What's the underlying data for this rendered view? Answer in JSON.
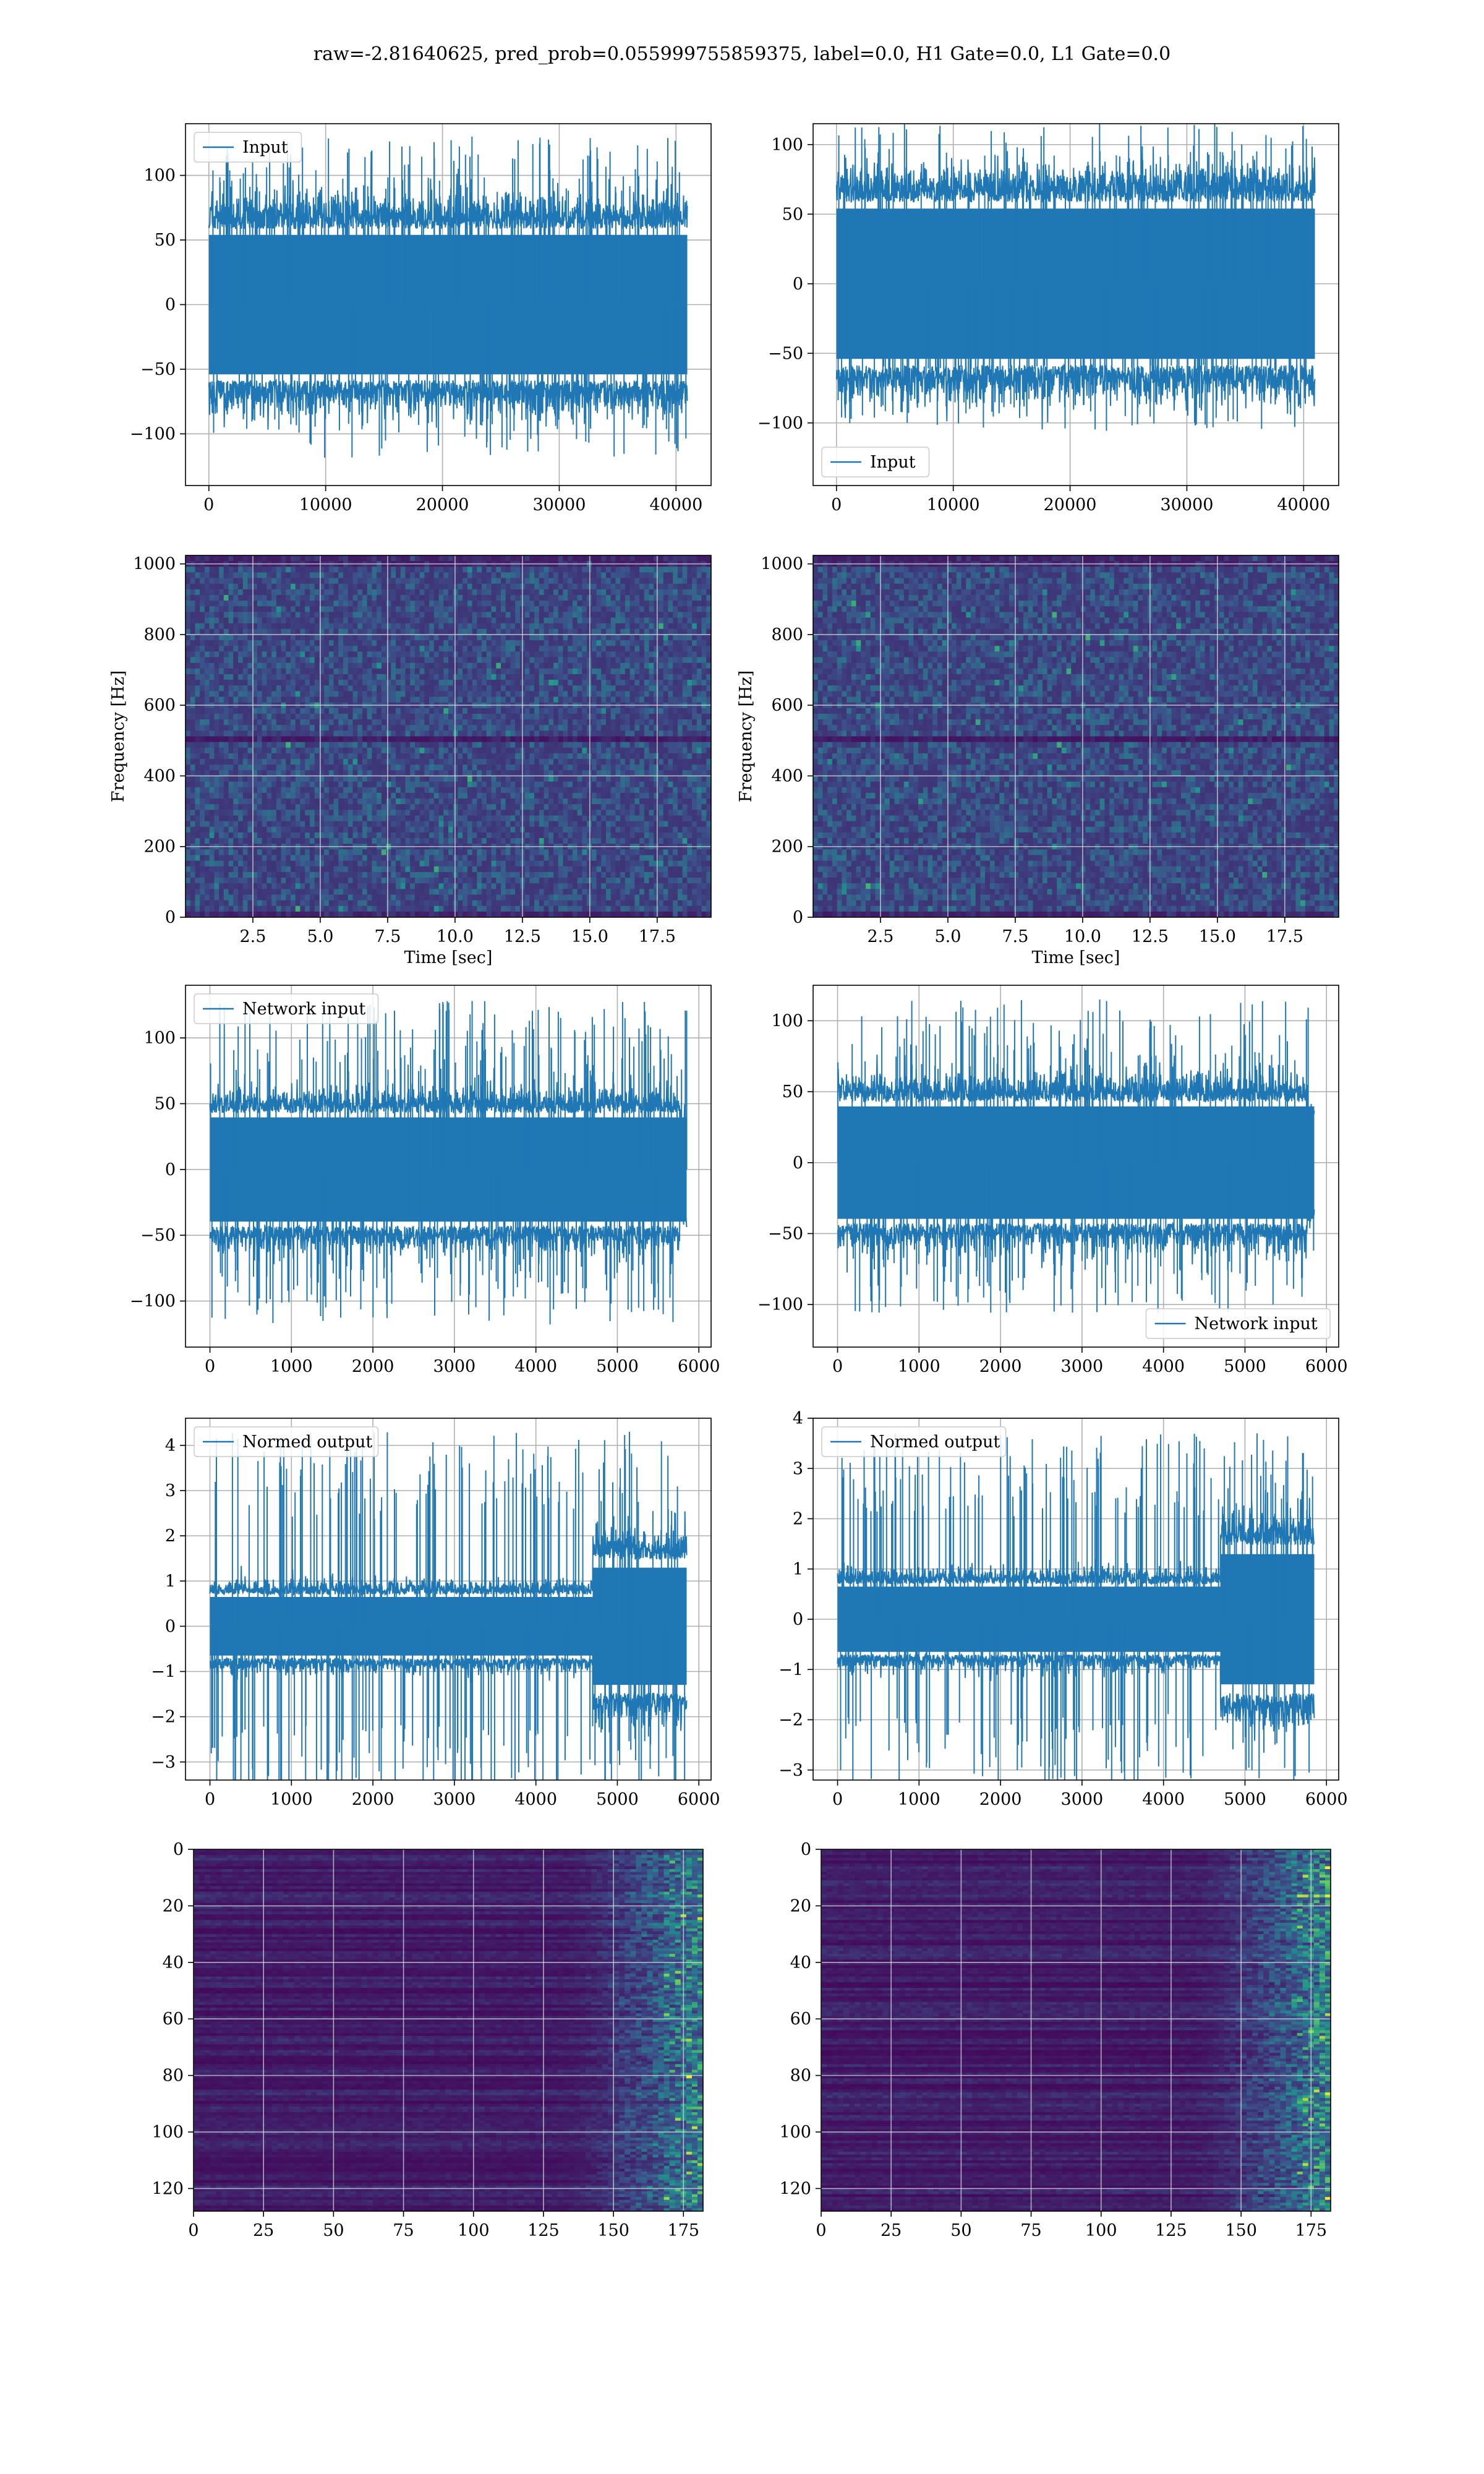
{
  "figure": {
    "suptitle": "raw=-2.81640625, pred_prob=0.055999755859375, label=0.0, H1 Gate=0.0, L1 Gate=0.0"
  },
  "colors": {
    "line": "#1f77b4",
    "grid": "#b0b0b0",
    "viridis_low": "#440154",
    "viridis_mid": "#21918c",
    "viridis_high": "#fde725"
  },
  "chart_data": [
    {
      "type": "line",
      "col": 0,
      "row": 0,
      "series": [
        {
          "name": "Input",
          "kind": "noise",
          "n": 40960,
          "amp": 75,
          "peak": 130,
          "burst_start": null
        }
      ],
      "xlim": [
        -2000,
        43000
      ],
      "ylim": [
        -140,
        140
      ],
      "xticks": [
        0,
        10000,
        20000,
        30000,
        40000
      ],
      "yticks": [
        -100,
        -50,
        0,
        50,
        100
      ],
      "xlabel": "",
      "ylabel": "",
      "legend": "top-left",
      "grid": true
    },
    {
      "type": "line",
      "col": 1,
      "row": 0,
      "series": [
        {
          "name": "Input",
          "kind": "noise",
          "n": 40960,
          "amp": 75,
          "peak": 115,
          "burst_start": null
        }
      ],
      "xlim": [
        -2000,
        43000
      ],
      "ylim": [
        -145,
        115
      ],
      "xticks": [
        0,
        10000,
        20000,
        30000,
        40000
      ],
      "yticks": [
        -100,
        -50,
        0,
        50,
        100
      ],
      "xlabel": "",
      "ylabel": "",
      "legend": "bottom-left",
      "grid": true
    },
    {
      "type": "heatmap",
      "col": 0,
      "row": 1,
      "style": "spectrogram",
      "xlim": [
        0,
        19.5
      ],
      "ylim": [
        0,
        1024
      ],
      "xticks": [
        2.5,
        5.0,
        7.5,
        10.0,
        12.5,
        15.0,
        17.5
      ],
      "yticks": [
        0,
        200,
        400,
        600,
        800,
        1000
      ],
      "xlabel": "Time [sec]",
      "ylabel": "Frequency [Hz]",
      "grid": true
    },
    {
      "type": "heatmap",
      "col": 1,
      "row": 1,
      "style": "spectrogram",
      "xlim": [
        0,
        19.5
      ],
      "ylim": [
        0,
        1024
      ],
      "xticks": [
        2.5,
        5.0,
        7.5,
        10.0,
        12.5,
        15.0,
        17.5
      ],
      "yticks": [
        0,
        200,
        400,
        600,
        800,
        1000
      ],
      "xlabel": "Time [sec]",
      "ylabel": "Frequency [Hz]",
      "grid": true
    },
    {
      "type": "line",
      "col": 0,
      "row": 2,
      "series": [
        {
          "name": "Network input",
          "kind": "noise",
          "n": 5850,
          "amp": 55,
          "peak": 128,
          "burst_start": null
        }
      ],
      "xlim": [
        -300,
        6150
      ],
      "ylim": [
        -135,
        140
      ],
      "xticks": [
        0,
        1000,
        2000,
        3000,
        4000,
        5000,
        6000
      ],
      "yticks": [
        -100,
        -50,
        0,
        50,
        100
      ],
      "xlabel": "",
      "ylabel": "",
      "legend": "top-left",
      "grid": true
    },
    {
      "type": "line",
      "col": 1,
      "row": 2,
      "series": [
        {
          "name": "Network input",
          "kind": "noise",
          "n": 5850,
          "amp": 55,
          "peak": 115,
          "burst_start": null
        }
      ],
      "xlim": [
        -300,
        6150
      ],
      "ylim": [
        -130,
        125
      ],
      "xticks": [
        0,
        1000,
        2000,
        3000,
        4000,
        5000,
        6000
      ],
      "yticks": [
        -100,
        -50,
        0,
        50,
        100
      ],
      "xlabel": "",
      "ylabel": "",
      "legend": "bottom-right",
      "grid": true
    },
    {
      "type": "line",
      "col": 0,
      "row": 3,
      "series": [
        {
          "name": "Normed output",
          "kind": "noise",
          "n": 5850,
          "amp": 0.9,
          "peak": 4.3,
          "burst_start": 4700
        }
      ],
      "xlim": [
        -300,
        6150
      ],
      "ylim": [
        -3.4,
        4.6
      ],
      "xticks": [
        0,
        1000,
        2000,
        3000,
        4000,
        5000,
        6000
      ],
      "yticks": [
        -3,
        -2,
        -1,
        0,
        1,
        2,
        3,
        4
      ],
      "xlabel": "",
      "ylabel": "",
      "legend": "top-left",
      "grid": true
    },
    {
      "type": "line",
      "col": 1,
      "row": 3,
      "series": [
        {
          "name": "Normed output",
          "kind": "noise",
          "n": 5850,
          "amp": 0.9,
          "peak": 3.7,
          "burst_start": 4700
        }
      ],
      "xlim": [
        -300,
        6150
      ],
      "ylim": [
        -3.2,
        4.0
      ],
      "xticks": [
        0,
        1000,
        2000,
        3000,
        4000,
        5000,
        6000
      ],
      "yticks": [
        -3,
        -2,
        -1,
        0,
        1,
        2,
        3,
        4
      ],
      "xlabel": "",
      "ylabel": "",
      "legend": "top-left",
      "grid": true
    },
    {
      "type": "heatmap",
      "col": 0,
      "row": 4,
      "style": "feature-map",
      "xlim": [
        0,
        182
      ],
      "ylim": [
        128,
        0
      ],
      "xticks": [
        0,
        25,
        50,
        75,
        100,
        125,
        150,
        175
      ],
      "yticks": [
        0,
        20,
        40,
        60,
        80,
        100,
        120
      ],
      "xlabel": "",
      "ylabel": "",
      "grid": true
    },
    {
      "type": "heatmap",
      "col": 1,
      "row": 4,
      "style": "feature-map",
      "xlim": [
        0,
        182
      ],
      "ylim": [
        128,
        0
      ],
      "xticks": [
        0,
        25,
        50,
        75,
        100,
        125,
        150,
        175
      ],
      "yticks": [
        0,
        20,
        40,
        60,
        80,
        100,
        120
      ],
      "xlabel": "",
      "ylabel": "",
      "grid": true
    }
  ]
}
